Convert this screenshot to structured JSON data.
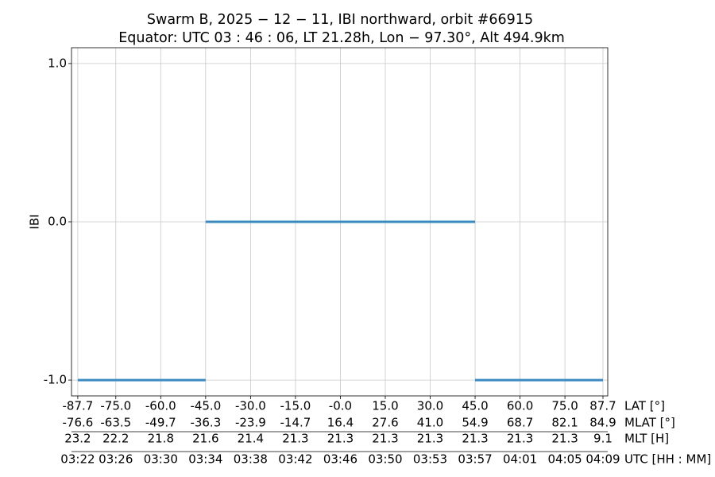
{
  "chart_data": {
    "type": "line",
    "title": "Swarm B,  2025 − 12 − 11,  IBI northward,  orbit #66915",
    "subtitle": "Equator:  UTC 03 : 46 : 06,  LT 21.28h,  Lon  − 97.30°,  Alt 494.9km",
    "ylabel": "IBI",
    "xlabel": "LAT [°]",
    "x": [
      -87.7,
      -45,
      null,
      -45,
      45,
      null,
      45,
      87.7
    ],
    "series": [
      {
        "color": "#3b8bc2",
        "values": [
          -1,
          -1,
          null,
          0,
          0,
          null,
          -1,
          -1
        ]
      }
    ],
    "xlim": [
      -89.8,
      89.3
    ],
    "ylim": [
      -1.1,
      1.1
    ],
    "xticks": [
      -87.7,
      {
        "value": -75,
        "label": "-75.0"
      },
      {
        "value": -60,
        "label": "-60.0"
      },
      {
        "value": -45,
        "label": "-45.0"
      },
      {
        "value": -30,
        "label": "-30.0"
      },
      {
        "value": -15,
        "label": "-15.0"
      },
      {
        "value": 0,
        "label": "-0.0"
      },
      {
        "value": 15,
        "label": "15.0"
      },
      {
        "value": 30,
        "label": "30.0"
      },
      {
        "value": 45,
        "label": "45.0"
      },
      {
        "value": 60,
        "label": "60.0"
      },
      {
        "value": 75,
        "label": "75.0"
      },
      87.7
    ],
    "yticks": [
      {
        "value": 1,
        "label": "1.0"
      },
      {
        "value": 0,
        "label": "0.0"
      },
      {
        "value": -1,
        "label": "-1.0"
      }
    ],
    "xtick_rows": [
      {
        "name": "MLAT [°]",
        "labels": [
          "-76.6",
          "-63.5",
          "-49.7",
          "-36.3",
          "-23.9",
          "-14.7",
          "16.4",
          "27.6",
          "41.0",
          "54.9",
          "68.7",
          "82.1",
          "84.9"
        ]
      },
      {
        "name": "MLT [H]",
        "labels": [
          "23.2",
          "22.2",
          "21.8",
          "21.6",
          "21.4",
          "21.3",
          "21.3",
          "21.3",
          "21.3",
          "21.3",
          "21.3",
          "21.3",
          "9.1"
        ]
      },
      {
        "name": "UTC [HH : MM]",
        "labels": [
          "03:22",
          "03:26",
          "03:30",
          "03:34",
          "03:38",
          "03:42",
          "03:46",
          "03:50",
          "03:53",
          "03:57",
          "04:01",
          "04:05",
          "04:09"
        ]
      }
    ],
    "grid": true
  }
}
